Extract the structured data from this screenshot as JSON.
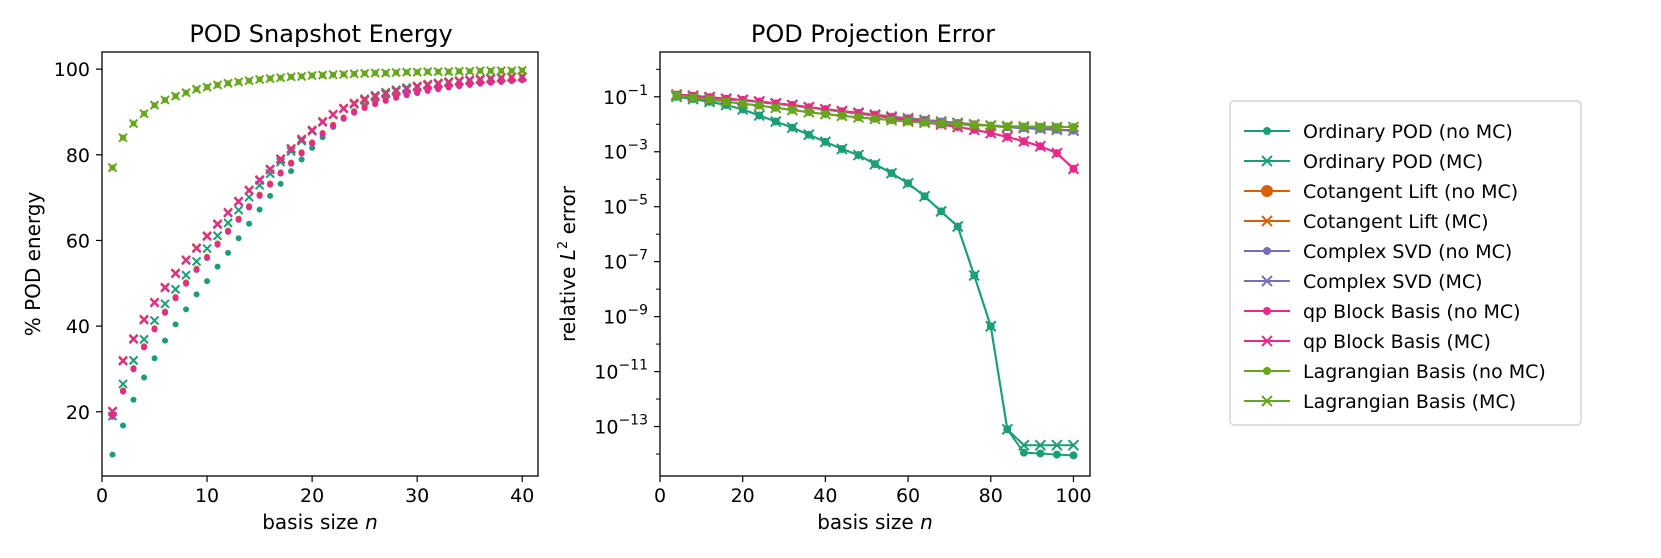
{
  "legend": {
    "placement": "right",
    "entries": [
      {
        "label": "Ordinary POD (no MC)",
        "color": "#1b9e77",
        "marker": "dot"
      },
      {
        "label": "Ordinary POD (MC)",
        "color": "#1b9e77",
        "marker": "x"
      },
      {
        "label": "Cotangent Lift (no MC)",
        "color": "#d95f02",
        "marker": "dot"
      },
      {
        "label": "Cotangent Lift (MC)",
        "color": "#d95f02",
        "marker": "x"
      },
      {
        "label": "Complex SVD (no MC)",
        "color": "#7570b3",
        "marker": "dot"
      },
      {
        "label": "Complex SVD (MC)",
        "color": "#7570b3",
        "marker": "x"
      },
      {
        "label": "qp Block Basis (no MC)",
        "color": "#e7298a",
        "marker": "dot"
      },
      {
        "label": "qp Block Basis (MC)",
        "color": "#e7298a",
        "marker": "x"
      },
      {
        "label": "Lagrangian Basis (no MC)",
        "color": "#66a61e",
        "marker": "dot"
      },
      {
        "label": "Lagrangian Basis (MC)",
        "color": "#66a61e",
        "marker": "x"
      }
    ]
  },
  "chart_data": [
    {
      "type": "scatter",
      "title": "POD Snapshot Energy",
      "xlabel": "basis size n",
      "ylabel": "% POD energy",
      "xlim": [
        0,
        41.5
      ],
      "ylim": [
        5,
        104
      ],
      "xticks": [
        0,
        10,
        20,
        30,
        40
      ],
      "yticks": [
        20,
        40,
        60,
        80,
        100
      ],
      "grid": false,
      "x": [
        1,
        2,
        3,
        4,
        5,
        6,
        7,
        8,
        9,
        10,
        11,
        12,
        13,
        14,
        15,
        16,
        17,
        18,
        19,
        20,
        21,
        22,
        23,
        24,
        25,
        26,
        27,
        28,
        29,
        30,
        31,
        32,
        33,
        34,
        35,
        36,
        37,
        38,
        39,
        40
      ],
      "series": [
        {
          "name": "Ordinary POD (no MC)",
          "color": "#1b9e77",
          "marker": "dot",
          "values": [
            10,
            16.8,
            22.8,
            28,
            32.5,
            36.6,
            40.4,
            43.9,
            47.4,
            50.5,
            53.9,
            57.1,
            60.5,
            63.9,
            67.2,
            70.4,
            73.2,
            76.2,
            78.9,
            81.6,
            84.1,
            86.5,
            88.4,
            90.2,
            91.5,
            92.5,
            93.4,
            94.2,
            94.9,
            95.5,
            95.9,
            96.3,
            96.6,
            96.9,
            97.2,
            97.4,
            97.6,
            97.8,
            97.9,
            98.1
          ]
        },
        {
          "name": "Ordinary POD (MC)",
          "color": "#1b9e77",
          "marker": "x",
          "values": [
            19,
            26.5,
            32,
            36.9,
            41.3,
            45.2,
            48.6,
            51.9,
            55.1,
            58.1,
            61.1,
            64.1,
            67.1,
            70.1,
            72.9,
            75.6,
            78.3,
            80.8,
            83.2,
            85.5,
            87.6,
            89.4,
            90.9,
            92.1,
            93.1,
            93.9,
            94.6,
            95.2,
            95.7,
            96.1,
            96.5,
            96.8,
            97.1,
            97.3,
            97.5,
            97.7,
            97.9,
            98,
            98.2,
            98.3
          ]
        },
        {
          "name": "Cotangent Lift (no MC)",
          "color": "#d95f02",
          "marker": "dot",
          "values": [
            19.2,
            25,
            30.2,
            35.3,
            39.5,
            43.4,
            46.8,
            50.2,
            53.4,
            56.2,
            59.3,
            62.3,
            65.1,
            68,
            70.7,
            73.3,
            75.9,
            78.2,
            80.6,
            82.9,
            85.1,
            87,
            88.7,
            90.1,
            91.2,
            92.1,
            92.9,
            93.6,
            94.2,
            94.7,
            95.2,
            95.6,
            96,
            96.3,
            96.6,
            96.9,
            97.1,
            97.3,
            97.5,
            97.7
          ]
        },
        {
          "name": "Cotangent Lift (MC)",
          "color": "#d95f02",
          "marker": "x",
          "values": [
            20.2,
            32,
            37.1,
            41.6,
            45.6,
            49.1,
            52.4,
            55.5,
            58.3,
            61.1,
            63.9,
            66.6,
            69.2,
            71.8,
            74.2,
            76.7,
            79.1,
            81.5,
            83.7,
            85.8,
            87.8,
            89.5,
            90.9,
            92,
            92.9,
            93.7,
            94.4,
            95,
            95.5,
            96,
            96.4,
            96.7,
            97,
            97.3,
            97.5,
            97.7,
            97.9,
            98.1,
            98.2,
            98.3
          ]
        },
        {
          "name": "Complex SVD (no MC)",
          "color": "#7570b3",
          "marker": "dot",
          "values": [
            18.8,
            24.7,
            29.9,
            35,
            39.2,
            43.1,
            46.5,
            49.9,
            53.1,
            55.9,
            59,
            62,
            64.8,
            67.7,
            70.4,
            73,
            75.6,
            77.9,
            80.3,
            82.6,
            84.8,
            86.7,
            88.4,
            89.8,
            90.9,
            91.8,
            92.6,
            93.3,
            93.9,
            94.4,
            94.9,
            95.3,
            95.7,
            96,
            96.3,
            96.6,
            96.8,
            97,
            97.2,
            97.4
          ]
        },
        {
          "name": "Complex SVD (MC)",
          "color": "#7570b3",
          "marker": "x",
          "values": [
            20,
            31.8,
            36.9,
            41.4,
            45.4,
            48.9,
            52.2,
            55.3,
            58.1,
            60.9,
            63.7,
            66.4,
            69,
            71.6,
            74,
            76.5,
            78.9,
            81.3,
            83.5,
            85.6,
            87.6,
            89.3,
            90.7,
            91.8,
            92.7,
            93.5,
            94.2,
            94.8,
            95.3,
            95.8,
            96.2,
            96.5,
            96.8,
            97.1,
            97.3,
            97.5,
            97.7,
            97.9,
            98,
            98.1
          ]
        },
        {
          "name": "qp Block Basis (no MC)",
          "color": "#e7298a",
          "marker": "dot",
          "values": [
            19,
            24.8,
            30,
            35.1,
            39.3,
            43.2,
            46.6,
            50,
            53.2,
            56,
            59.1,
            62.1,
            64.9,
            67.8,
            70.5,
            73.1,
            75.7,
            78,
            80.4,
            82.7,
            84.9,
            86.8,
            88.5,
            89.9,
            91,
            91.9,
            92.7,
            93.4,
            94,
            94.5,
            95,
            95.4,
            95.8,
            96.1,
            96.4,
            96.7,
            96.9,
            97.1,
            97.3,
            97.5
          ]
        },
        {
          "name": "qp Block Basis (MC)",
          "color": "#e7298a",
          "marker": "x",
          "values": [
            20.1,
            31.9,
            37,
            41.5,
            45.5,
            49,
            52.3,
            55.4,
            58.2,
            61,
            63.8,
            66.5,
            69.1,
            71.7,
            74.1,
            76.6,
            79,
            81.4,
            83.6,
            85.7,
            87.7,
            89.4,
            90.8,
            91.9,
            92.8,
            93.6,
            94.3,
            94.9,
            95.4,
            95.9,
            96.3,
            96.6,
            96.9,
            97.2,
            97.4,
            97.6,
            97.8,
            98,
            98.1,
            98.2
          ]
        },
        {
          "name": "Lagrangian Basis (no MC)",
          "color": "#66a61e",
          "marker": "dot",
          "values": [
            77,
            84,
            87.3,
            89.6,
            91.6,
            92.8,
            93.7,
            94.5,
            95.3,
            95.8,
            96.3,
            96.7,
            97,
            97.3,
            97.6,
            97.8,
            98,
            98.2,
            98.3,
            98.5,
            98.6,
            98.7,
            98.8,
            98.9,
            99,
            99.1,
            99.1,
            99.2,
            99.3,
            99.3,
            99.4,
            99.4,
            99.4,
            99.5,
            99.5,
            99.6,
            99.6,
            99.6,
            99.6,
            99.7
          ]
        },
        {
          "name": "Lagrangian Basis (MC)",
          "color": "#66a61e",
          "marker": "x",
          "values": [
            77,
            84,
            87.3,
            89.6,
            91.6,
            92.8,
            93.7,
            94.5,
            95.3,
            95.8,
            96.3,
            96.7,
            97,
            97.3,
            97.6,
            97.8,
            98,
            98.2,
            98.3,
            98.5,
            98.6,
            98.7,
            98.8,
            98.9,
            99,
            99.1,
            99.1,
            99.2,
            99.3,
            99.3,
            99.4,
            99.4,
            99.4,
            99.5,
            99.5,
            99.6,
            99.6,
            99.6,
            99.6,
            99.7
          ]
        }
      ]
    },
    {
      "type": "line",
      "title": "POD Projection Error",
      "xlabel": "basis size n",
      "ylabel": "relative L² error",
      "xlim": [
        0,
        104
      ],
      "ylim": [
        -14.8,
        0.63
      ],
      "yscale": "log10",
      "xticks": [
        0,
        20,
        40,
        60,
        80,
        100
      ],
      "yticks": [
        -1,
        -3,
        -5,
        -7,
        -9,
        -11,
        -13
      ],
      "ytick_labels": [
        "10-1",
        "10-3",
        "10-5",
        "10-7",
        "10-9",
        "10-11",
        "10-13"
      ],
      "grid": false,
      "x": [
        4,
        8,
        12,
        16,
        20,
        24,
        28,
        32,
        36,
        40,
        44,
        48,
        52,
        56,
        60,
        64,
        68,
        72,
        76,
        80,
        84,
        88,
        92,
        96,
        100
      ],
      "series": [
        {
          "name": "Ordinary POD (no MC)",
          "color": "#1b9e77",
          "marker": "dot",
          "values": [
            -1.0,
            -1.08,
            -1.18,
            -1.3,
            -1.46,
            -1.68,
            -1.9,
            -2.12,
            -2.38,
            -2.64,
            -2.9,
            -3.12,
            -3.45,
            -3.78,
            -4.15,
            -4.62,
            -5.17,
            -5.72,
            -7.5,
            -9.35,
            -13.1,
            -13.95,
            -13.98,
            -14.02,
            -14.05
          ]
        },
        {
          "name": "Ordinary POD (MC)",
          "color": "#1b9e77",
          "marker": "x",
          "values": [
            -1.0,
            -1.08,
            -1.18,
            -1.3,
            -1.46,
            -1.68,
            -1.9,
            -2.12,
            -2.38,
            -2.64,
            -2.9,
            -3.12,
            -3.45,
            -3.78,
            -4.15,
            -4.62,
            -5.17,
            -5.72,
            -7.5,
            -9.35,
            -13.1,
            -13.68,
            -13.68,
            -13.68,
            -13.68
          ]
        },
        {
          "name": "Cotangent Lift (no MC)",
          "color": "#d95f02",
          "marker": "dot",
          "values": [
            -0.93,
            -0.97,
            -1.02,
            -1.08,
            -1.12,
            -1.18,
            -1.25,
            -1.3,
            -1.38,
            -1.45,
            -1.52,
            -1.58,
            -1.65,
            -1.72,
            -1.78,
            -1.84,
            -1.9,
            -1.95,
            -2.0,
            -2.05,
            -2.1,
            -2.13,
            -2.16,
            -2.19,
            -2.22
          ]
        },
        {
          "name": "Cotangent Lift (MC)",
          "color": "#d95f02",
          "marker": "x",
          "values": [
            -0.93,
            -0.97,
            -1.02,
            -1.08,
            -1.12,
            -1.18,
            -1.25,
            -1.3,
            -1.38,
            -1.45,
            -1.52,
            -1.58,
            -1.65,
            -1.72,
            -1.78,
            -1.84,
            -1.9,
            -1.95,
            -2.0,
            -2.05,
            -2.1,
            -2.13,
            -2.16,
            -2.19,
            -2.22
          ]
        },
        {
          "name": "Complex SVD (no MC)",
          "color": "#7570b3",
          "marker": "dot",
          "values": [
            -0.94,
            -0.98,
            -1.03,
            -1.09,
            -1.13,
            -1.19,
            -1.26,
            -1.31,
            -1.39,
            -1.46,
            -1.53,
            -1.59,
            -1.66,
            -1.73,
            -1.79,
            -1.85,
            -1.91,
            -1.96,
            -2.01,
            -2.06,
            -2.11,
            -2.14,
            -2.17,
            -2.2,
            -2.23
          ]
        },
        {
          "name": "Complex SVD (MC)",
          "color": "#7570b3",
          "marker": "x",
          "values": [
            -0.94,
            -0.98,
            -1.03,
            -1.09,
            -1.13,
            -1.19,
            -1.26,
            -1.31,
            -1.39,
            -1.46,
            -1.53,
            -1.59,
            -1.66,
            -1.73,
            -1.79,
            -1.85,
            -1.91,
            -1.96,
            -2.01,
            -2.06,
            -2.11,
            -2.14,
            -2.17,
            -2.2,
            -2.23
          ]
        },
        {
          "name": "qp Block Basis (no MC)",
          "color": "#e7298a",
          "marker": "dot",
          "values": [
            -0.92,
            -0.96,
            -1.01,
            -1.07,
            -1.11,
            -1.17,
            -1.24,
            -1.3,
            -1.38,
            -1.46,
            -1.54,
            -1.61,
            -1.69,
            -1.77,
            -1.85,
            -1.93,
            -2.01,
            -2.1,
            -2.2,
            -2.32,
            -2.46,
            -2.62,
            -2.8,
            -3.05,
            -3.62
          ]
        },
        {
          "name": "qp Block Basis (MC)",
          "color": "#e7298a",
          "marker": "x",
          "values": [
            -0.92,
            -0.96,
            -1.01,
            -1.07,
            -1.11,
            -1.17,
            -1.24,
            -1.3,
            -1.38,
            -1.46,
            -1.54,
            -1.61,
            -1.69,
            -1.77,
            -1.85,
            -1.93,
            -2.01,
            -2.1,
            -2.2,
            -2.32,
            -2.46,
            -2.62,
            -2.8,
            -3.05,
            -3.62
          ]
        },
        {
          "name": "Lagrangian Basis (no MC)",
          "color": "#66a61e",
          "marker": "dot",
          "values": [
            -0.95,
            -1.03,
            -1.1,
            -1.18,
            -1.25,
            -1.32,
            -1.4,
            -1.48,
            -1.56,
            -1.63,
            -1.69,
            -1.75,
            -1.8,
            -1.85,
            -1.9,
            -1.94,
            -1.97,
            -2.0,
            -2.03,
            -2.05,
            -2.07,
            -2.08,
            -2.09,
            -2.1,
            -2.1
          ]
        },
        {
          "name": "Lagrangian Basis (MC)",
          "color": "#66a61e",
          "marker": "x",
          "values": [
            -0.95,
            -1.03,
            -1.1,
            -1.18,
            -1.25,
            -1.32,
            -1.4,
            -1.48,
            -1.56,
            -1.63,
            -1.69,
            -1.75,
            -1.8,
            -1.85,
            -1.9,
            -1.94,
            -1.97,
            -2.0,
            -2.03,
            -2.05,
            -2.07,
            -2.08,
            -2.09,
            -2.1,
            -2.1
          ]
        }
      ]
    }
  ]
}
